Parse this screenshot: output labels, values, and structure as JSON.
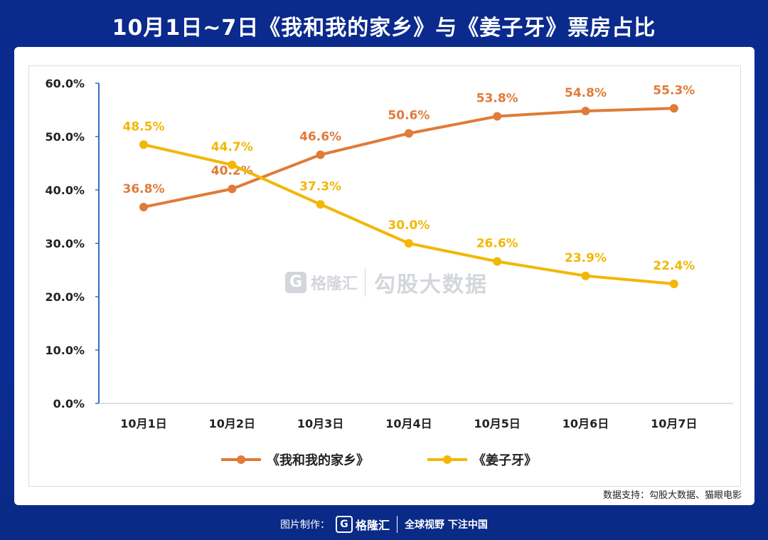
{
  "header": {
    "title": "10月1日~7日《我和我的家乡》与《姜子牙》票房占比"
  },
  "watermark": {
    "logo": "G",
    "brand": "格隆汇",
    "text": "勾股大数据"
  },
  "source_note": "数据支持：勾股大数据、猫眼电影",
  "footer": {
    "made_by": "图片制作：",
    "logo": "G",
    "brand": "格隆汇",
    "slogan": "全球视野 下注中国"
  },
  "chart_data": {
    "type": "line",
    "categories": [
      "10月1日",
      "10月2日",
      "10月3日",
      "10月4日",
      "10月5日",
      "10月6日",
      "10月7日"
    ],
    "yticks": [
      "0.0%",
      "10.0%",
      "20.0%",
      "30.0%",
      "40.0%",
      "50.0%",
      "60.0%"
    ],
    "ylim": [
      0,
      60
    ],
    "series": [
      {
        "name": "《我和我的家乡》",
        "color": "#e07b39",
        "values": [
          36.8,
          40.2,
          46.6,
          50.6,
          53.8,
          54.8,
          55.3
        ],
        "labels": [
          "36.8%",
          "40.2%",
          "46.6%",
          "50.6%",
          "53.8%",
          "54.8%",
          "55.3%"
        ]
      },
      {
        "name": "《姜子牙》",
        "color": "#f2b705",
        "values": [
          48.5,
          44.7,
          37.3,
          30.0,
          26.6,
          23.9,
          22.4
        ],
        "labels": [
          "48.5%",
          "44.7%",
          "37.3%",
          "30.0%",
          "26.6%",
          "23.9%",
          "22.4%"
        ]
      }
    ],
    "legend_position": "bottom-center",
    "grid": false
  }
}
